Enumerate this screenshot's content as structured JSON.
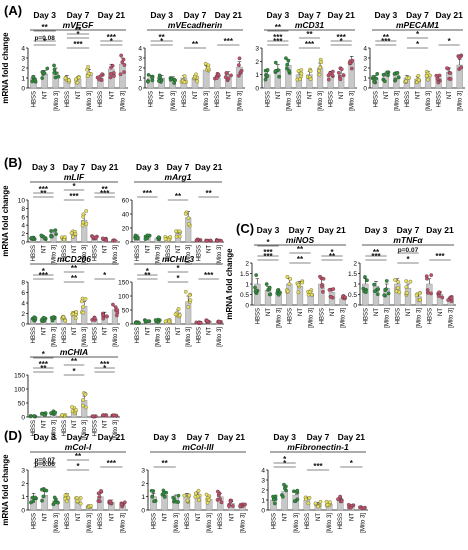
{
  "panel_labels": [
    "(A)",
    "(B)",
    "(C)",
    "(D)"
  ],
  "y_axis_label": "mRNA fold change",
  "day_labels": [
    "Day 3",
    "Day 7",
    "Day 21"
  ],
  "group_labels": [
    "HBSS",
    "NT",
    "[Mito 3]"
  ],
  "colors": {
    "day3": "#2e8b3a",
    "day7": "#e8e05a",
    "day21": "#c0506a",
    "bar": "#c8c8c8",
    "sig": "#111111"
  },
  "chart_data": [
    {
      "type": "bar",
      "panel": "A",
      "title": "mVEGF",
      "yticks": [
        0,
        1,
        2,
        3,
        4
      ],
      "ylim": [
        0,
        4
      ],
      "categories": [
        "Day 3 HBSS",
        "Day 3 NT",
        "Day 3 [Mito 3]",
        "Day 7 HBSS",
        "Day 7 NT",
        "Day 7 [Mito 3]",
        "Day 21 HBSS",
        "Day 21 NT",
        "Day 21 [Mito 3]"
      ],
      "values": [
        1.0,
        1.4,
        1.6,
        1.0,
        0.9,
        1.5,
        1.0,
        1.9,
        2.4
      ],
      "annotations": [
        "*",
        "***",
        "*",
        "p=0.08",
        "*",
        "***",
        "**",
        "**"
      ]
    },
    {
      "type": "bar",
      "panel": "A",
      "title": "mVEcadherin",
      "yticks": [
        0,
        1,
        2,
        3,
        4
      ],
      "ylim": [
        0,
        4
      ],
      "categories": [
        "Day 3 HBSS",
        "Day 3 NT",
        "Day 3 [Mito 3]",
        "Day 7 HBSS",
        "Day 7 NT",
        "Day 7 [Mito 3]",
        "Day 21 HBSS",
        "Day 21 NT",
        "Day 21 [Mito 3]"
      ],
      "values": [
        1.0,
        1.0,
        0.9,
        1.0,
        1.0,
        1.8,
        1.0,
        1.3,
        2.1
      ],
      "annotations": [
        "*",
        "**",
        "***",
        "**"
      ]
    },
    {
      "type": "bar",
      "panel": "A",
      "title": "mCD31",
      "yticks": [
        0,
        1,
        2,
        3
      ],
      "ylim": [
        0,
        3
      ],
      "categories": [
        "Day 3 HBSS",
        "Day 3 NT",
        "Day 3 [Mito 3]",
        "Day 7 HBSS",
        "Day 7 NT",
        "Day 7 [Mito 3]",
        "Day 21 HBSS",
        "Day 21 NT",
        "Day 21 [Mito 3]"
      ],
      "values": [
        1.0,
        1.4,
        1.7,
        1.0,
        1.0,
        1.5,
        1.0,
        1.1,
        1.9
      ],
      "annotations": [
        "***",
        "***",
        "*",
        "***",
        "**",
        "***",
        "**"
      ]
    },
    {
      "type": "bar",
      "panel": "A",
      "title": "mPECAM1",
      "yticks": [
        0,
        1,
        2,
        3,
        4
      ],
      "ylim": [
        0,
        4
      ],
      "categories": [
        "Day 3 HBSS",
        "Day 3 NT",
        "Day 3 [Mito 3]",
        "Day 7 HBSS",
        "Day 7 NT",
        "Day 7 [Mito 3]",
        "Day 21 HBSS",
        "Day 21 NT",
        "Day 21 [Mito 3]"
      ],
      "values": [
        1.0,
        1.2,
        1.3,
        1.0,
        0.9,
        1.3,
        1.0,
        1.6,
        2.3
      ],
      "annotations": [
        "***",
        "*",
        "*",
        "**",
        "*"
      ]
    },
    {
      "type": "bar",
      "panel": "B",
      "title": "mLIF",
      "yticks": [
        0,
        2,
        4,
        6,
        8,
        10
      ],
      "ylim": [
        0,
        10
      ],
      "categories": [
        "Day 3 HBSS",
        "Day 3 NT",
        "Day 3 [Mito 3]",
        "Day 7 HBSS",
        "Day 7 NT",
        "Day 7 [Mito 3]",
        "Day 21 HBSS",
        "Day 21 NT",
        "Day 21 [Mito 3]"
      ],
      "values": [
        1.0,
        1.2,
        2.3,
        1.0,
        1.8,
        5.2,
        1.0,
        0.6,
        0.4
      ],
      "annotations": [
        "**",
        "***",
        "***",
        "***",
        "*",
        "**"
      ]
    },
    {
      "type": "bar",
      "panel": "B",
      "title": "mArg1",
      "yticks": [
        0,
        20,
        40,
        60
      ],
      "ylim": [
        0,
        60
      ],
      "categories": [
        "Day 3 HBSS",
        "Day 3 NT",
        "Day 3 [Mito 3]",
        "Day 7 HBSS",
        "Day 7 NT",
        "Day 7 [Mito 3]",
        "Day 21 HBSS",
        "Day 21 NT",
        "Day 21 [Mito 3]"
      ],
      "values": [
        8,
        7,
        5,
        5,
        12,
        35,
        3,
        2,
        2
      ],
      "annotations": [
        "***",
        "**",
        "**"
      ]
    },
    {
      "type": "bar",
      "panel": "B",
      "title": "mCD206",
      "yticks": [
        0,
        2,
        4,
        6,
        8
      ],
      "ylim": [
        0,
        8
      ],
      "categories": [
        "Day 3 HBSS",
        "Day 3 NT",
        "Day 3 [Mito 3]",
        "Day 7 HBSS",
        "Day 7 NT",
        "Day 7 [Mito 3]",
        "Day 21 HBSS",
        "Day 21 NT",
        "Day 21 [Mito 3]"
      ],
      "values": [
        1.0,
        0.9,
        1.0,
        1.0,
        1.9,
        3.4,
        1.0,
        1.8,
        2.7
      ],
      "annotations": [
        "***",
        "**",
        "*",
        "*",
        "**"
      ]
    },
    {
      "type": "bar",
      "panel": "B",
      "title": "mCHIL3",
      "yticks": [
        0,
        50,
        100,
        150
      ],
      "ylim": [
        0,
        150
      ],
      "categories": [
        "Day 3 HBSS",
        "Day 3 NT",
        "Day 3 [Mito 3]",
        "Day 7 HBSS",
        "Day 7 NT",
        "Day 7 [Mito 3]",
        "Day 21 HBSS",
        "Day 21 NT",
        "Day 21 [Mito 3]"
      ],
      "values": [
        5,
        10,
        12,
        10,
        40,
        80,
        5,
        10,
        6
      ],
      "annotations": [
        "**",
        "*",
        "***",
        "*",
        "*"
      ]
    },
    {
      "type": "bar",
      "panel": "B",
      "title": "mCHIA",
      "yticks": [
        0,
        50,
        100,
        150
      ],
      "ylim": [
        0,
        150
      ],
      "categories": [
        "Day 3 HBSS",
        "Day 3 NT",
        "Day 3 [Mito 3]",
        "Day 7 HBSS",
        "Day 7 NT",
        "Day 7 [Mito 3]",
        "Day 21 HBSS",
        "Day 21 NT",
        "Day 21 [Mito 3]"
      ],
      "values": [
        3,
        10,
        15,
        5,
        25,
        60,
        2,
        5,
        5
      ],
      "annotations": [
        "**",
        "*",
        "*",
        "***",
        "**",
        "***",
        "*"
      ]
    },
    {
      "type": "bar",
      "panel": "C",
      "title": "miNOS",
      "yticks": [
        0.0,
        0.5,
        1.0,
        1.5,
        2.0
      ],
      "ylim": [
        0,
        2
      ],
      "categories": [
        "Day 3 HBSS",
        "Day 3 NT",
        "Day 3 [Mito 3]",
        "Day 7 HBSS",
        "Day 7 NT",
        "Day 7 [Mito 3]",
        "Day 21 HBSS",
        "Day 21 NT",
        "Day 21 [Mito 3]"
      ],
      "values": [
        1.0,
        0.7,
        0.5,
        1.0,
        0.9,
        0.5,
        1.0,
        0.6,
        0.3
      ],
      "annotations": [
        "***",
        "**",
        "**",
        "***",
        "**",
        "*",
        "*"
      ]
    },
    {
      "type": "bar",
      "panel": "C",
      "title": "mTNFα",
      "yticks": [
        0.0,
        0.5,
        1.0,
        1.5,
        2.0
      ],
      "ylim": [
        0,
        2
      ],
      "categories": [
        "Day 3 HBSS",
        "Day 3 NT",
        "Day 3 [Mito 3]",
        "Day 7 HBSS",
        "Day 7 NT",
        "Day 7 [Mito 3]",
        "Day 21 HBSS",
        "Day 21 NT",
        "Day 21 [Mito 3]"
      ],
      "values": [
        1.0,
        0.9,
        0.8,
        1.0,
        0.8,
        0.4,
        1.0,
        0.5,
        0.3
      ],
      "annotations": [
        "***",
        "*",
        "***",
        "**",
        "p=0.07"
      ]
    },
    {
      "type": "bar",
      "panel": "D",
      "title": "mCol-I",
      "yticks": [
        0,
        1,
        2,
        3
      ],
      "ylim": [
        0,
        3
      ],
      "categories": [
        "Day 3 HBSS",
        "Day 3 NT",
        "Day 3 [Mito 3]",
        "Day 7 HBSS",
        "Day 7 NT",
        "Day 7 [Mito 3]",
        "Day 21 HBSS",
        "Day 21 NT",
        "Day 21 [Mito 3]"
      ],
      "values": [
        1.0,
        1.1,
        0.7,
        1.0,
        0.7,
        0.3,
        1.0,
        0.6,
        0.4
      ],
      "annotations": [
        "p=0.06",
        "*",
        "***",
        "p=0.07",
        "**"
      ]
    },
    {
      "type": "bar",
      "panel": "D",
      "title": "mCol-III",
      "yticks": [
        0,
        1,
        2,
        3
      ],
      "ylim": [
        0,
        3
      ],
      "categories": [
        "Day 3 HBSS",
        "Day 3 NT",
        "Day 3 [Mito 3]",
        "Day 7 HBSS",
        "Day 7 NT",
        "Day 7 [Mito 3]",
        "Day 21 HBSS",
        "Day 21 NT",
        "Day 21 [Mito 3]"
      ],
      "values": [
        1.0,
        1.1,
        0.9,
        1.0,
        1.1,
        0.8,
        1.0,
        0.5,
        0.3
      ],
      "annotations": [
        "**"
      ]
    },
    {
      "type": "bar",
      "panel": "D",
      "title": "mFibronectin-1",
      "yticks": [
        0,
        1,
        2,
        3,
        4
      ],
      "ylim": [
        0,
        4
      ],
      "categories": [
        "Day 3 HBSS",
        "Day 3 NT",
        "Day 3 [Mito 3]",
        "Day 7 HBSS",
        "Day 7 NT",
        "Day 7 [Mito 3]",
        "Day 21 HBSS",
        "Day 21 NT",
        "Day 21 [Mito 3]"
      ],
      "values": [
        1.0,
        1.9,
        1.5,
        1.0,
        0.6,
        0.6,
        1.0,
        0.4,
        0.2
      ],
      "annotations": [
        "*",
        "***",
        "*",
        "*"
      ]
    }
  ]
}
